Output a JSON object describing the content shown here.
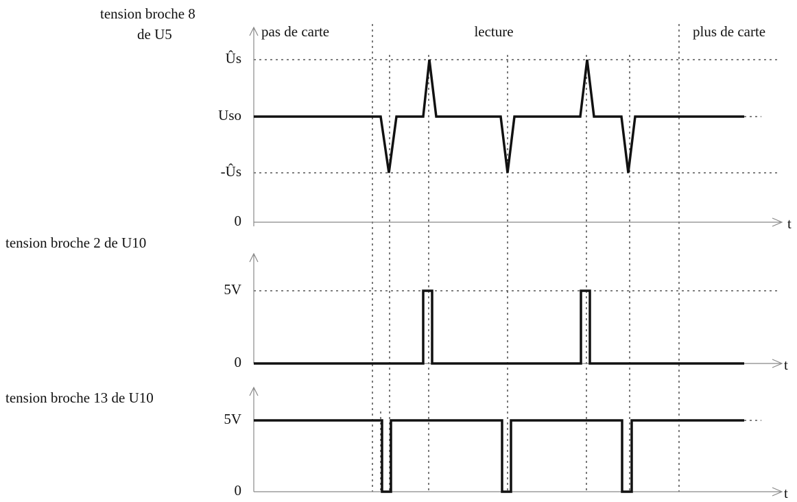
{
  "phases": [
    "pas de carte",
    "lecture",
    "plus de carte"
  ],
  "panels": [
    {
      "title": [
        "tension broche 8",
        "de U5"
      ],
      "levels": [
        "Ûs",
        "Uso",
        "-Ûs",
        "0"
      ],
      "axis": "t"
    },
    {
      "title": [
        "tension broche 2 de U10"
      ],
      "levels": [
        "5V",
        "0"
      ],
      "axis": "t"
    },
    {
      "title": [
        "tension broche 13 de U10"
      ],
      "levels": [
        "5V",
        "0"
      ],
      "axis": "t"
    }
  ]
}
